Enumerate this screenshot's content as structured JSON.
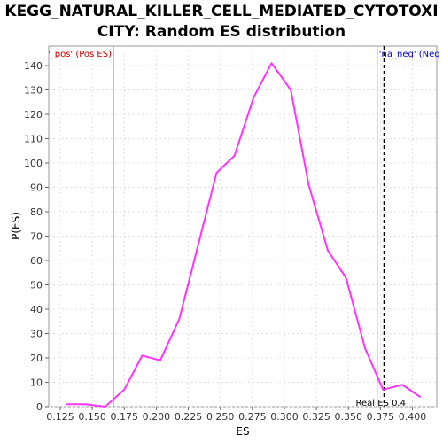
{
  "chart_data": {
    "type": "line",
    "title_line1": "KEGG_NATURAL_KILLER_CELL_MEDIATED_CYTOTOXI",
    "title_line2": "CITY: Random ES distribution",
    "xlabel": "ES",
    "ylabel": "P(ES)",
    "xlim": [
      0.116,
      0.419
    ],
    "ylim": [
      0,
      148
    ],
    "xticks": [
      "0.125",
      "0.150",
      "0.175",
      "0.200",
      "0.225",
      "0.250",
      "0.275",
      "0.300",
      "0.325",
      "0.350",
      "0.375",
      "0.400"
    ],
    "yticks": [
      "0",
      "10",
      "20",
      "30",
      "40",
      "50",
      "60",
      "70",
      "80",
      "90",
      "100",
      "110",
      "120",
      "130",
      "140"
    ],
    "grid": true,
    "series": [
      {
        "color": "#ff33ff",
        "x": [
          0.13,
          0.145,
          0.16,
          0.175,
          0.189,
          0.203,
          0.218,
          0.232,
          0.247,
          0.261,
          0.276,
          0.29,
          0.305,
          0.319,
          0.334,
          0.348,
          0.363,
          0.377,
          0.392,
          0.406
        ],
        "y": [
          1,
          1,
          0,
          7,
          21,
          19,
          36,
          65,
          96,
          103,
          127,
          141,
          130,
          91,
          64,
          53,
          24,
          7,
          9,
          4
        ]
      }
    ],
    "markers": [
      {
        "x": 0.1665,
        "label": "'_pos' (Pos ES)",
        "color": "#cc0000",
        "line_color": "#888888",
        "style": "solid",
        "label_side": "left"
      },
      {
        "x": 0.3725,
        "label": "'na_neg' (Neg",
        "color": "#0000cc",
        "line_color": "#888888",
        "style": "solid",
        "label_side": "right"
      },
      {
        "x": 0.378,
        "label": "Real ES 0.4",
        "color": "#000000",
        "line_color": "#000000",
        "style": "dashed",
        "label_side": "bottom"
      }
    ]
  }
}
